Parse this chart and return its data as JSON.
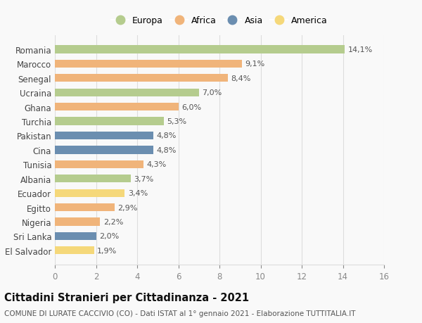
{
  "categories": [
    "Romania",
    "Marocco",
    "Senegal",
    "Ucraina",
    "Ghana",
    "Turchia",
    "Pakistan",
    "Cina",
    "Tunisia",
    "Albania",
    "Ecuador",
    "Egitto",
    "Nigeria",
    "Sri Lanka",
    "El Salvador"
  ],
  "values": [
    14.1,
    9.1,
    8.4,
    7.0,
    6.0,
    5.3,
    4.8,
    4.8,
    4.3,
    3.7,
    3.4,
    2.9,
    2.2,
    2.0,
    1.9
  ],
  "continents": [
    "Europa",
    "Africa",
    "Africa",
    "Europa",
    "Africa",
    "Europa",
    "Asia",
    "Asia",
    "Africa",
    "Europa",
    "America",
    "Africa",
    "Africa",
    "Asia",
    "America"
  ],
  "continent_colors": {
    "Europa": "#b5cc8e",
    "Africa": "#f0b47a",
    "Asia": "#6b8eb0",
    "America": "#f5d87a"
  },
  "legend_order": [
    "Europa",
    "Africa",
    "Asia",
    "America"
  ],
  "title": "Cittadini Stranieri per Cittadinanza - 2021",
  "subtitle": "COMUNE DI LURATE CACCIVIO (CO) - Dati ISTAT al 1° gennaio 2021 - Elaborazione TUTTITALIA.IT",
  "xlim": [
    0,
    16
  ],
  "xticks": [
    0,
    2,
    4,
    6,
    8,
    10,
    12,
    14,
    16
  ],
  "background_color": "#f9f9f9",
  "grid_color": "#dddddd",
  "bar_height": 0.55,
  "value_label_fontsize": 8,
  "tick_label_fontsize": 8.5,
  "title_fontsize": 10.5,
  "subtitle_fontsize": 7.5
}
